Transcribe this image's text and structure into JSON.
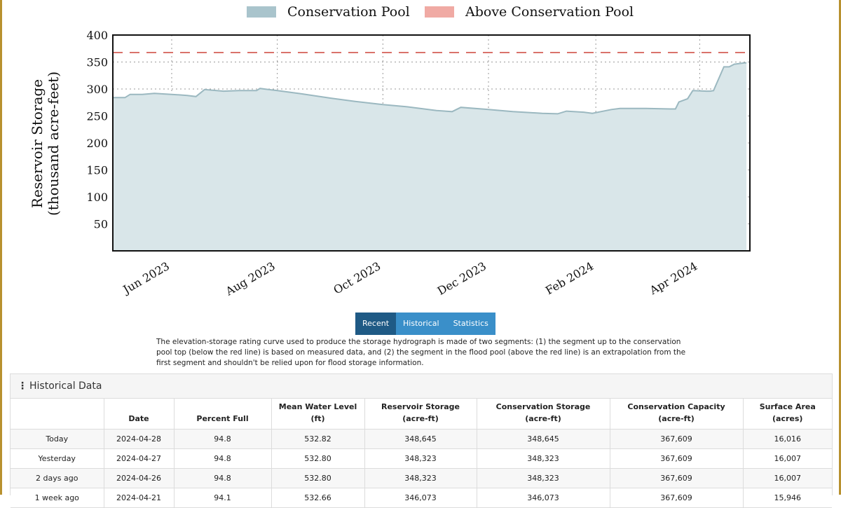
{
  "legend": {
    "conservation_label": "Conservation Pool",
    "above_label": "Above Conservation Pool",
    "conservation_color": "#a9c4cc",
    "above_color": "#f0aaa4"
  },
  "chart_data": {
    "type": "area",
    "ylabel_line1": "Reservoir Storage",
    "ylabel_line2": "(thousand acre-feet)",
    "ylim": [
      0,
      400
    ],
    "yticks": [
      50,
      100,
      150,
      200,
      250,
      300,
      350,
      400
    ],
    "xlim": [
      "2023-04-28",
      "2024-04-30"
    ],
    "xticks": [
      {
        "date": "2023-06-01",
        "label": "Jun 2023"
      },
      {
        "date": "2023-08-01",
        "label": "Aug 2023"
      },
      {
        "date": "2023-10-01",
        "label": "Oct 2023"
      },
      {
        "date": "2023-12-01",
        "label": "Dec 2023"
      },
      {
        "date": "2024-02-01",
        "label": "Feb 2024"
      },
      {
        "date": "2024-04-01",
        "label": "Apr 2024"
      }
    ],
    "grid": true,
    "conservation_pool_top": 367.6,
    "series": [
      {
        "name": "Conservation Pool",
        "x": [
          "2023-04-28",
          "2023-05-05",
          "2023-05-08",
          "2023-05-15",
          "2023-05-22",
          "2023-06-01",
          "2023-06-10",
          "2023-06-15",
          "2023-06-20",
          "2023-07-01",
          "2023-07-10",
          "2023-07-20",
          "2023-07-22",
          "2023-08-01",
          "2023-08-15",
          "2023-09-01",
          "2023-09-15",
          "2023-10-01",
          "2023-10-15",
          "2023-11-01",
          "2023-11-10",
          "2023-11-15",
          "2023-12-01",
          "2023-12-15",
          "2024-01-01",
          "2024-01-10",
          "2024-01-15",
          "2024-01-25",
          "2024-01-30",
          "2024-02-10",
          "2024-02-15",
          "2024-03-01",
          "2024-03-15",
          "2024-03-18",
          "2024-03-20",
          "2024-03-25",
          "2024-03-28",
          "2024-04-05",
          "2024-04-07",
          "2024-04-09",
          "2024-04-15",
          "2024-04-18",
          "2024-04-21",
          "2024-04-26",
          "2024-04-28"
        ],
        "values": [
          284,
          284,
          290,
          290,
          292,
          290,
          288,
          286,
          299,
          296,
          297,
          297,
          301,
          297,
          291,
          283,
          277,
          271,
          267,
          260,
          258,
          266,
          262,
          258,
          255,
          254,
          259,
          257,
          255,
          262,
          264,
          264,
          263,
          263,
          276,
          282,
          297,
          296,
          296,
          297,
          341,
          341,
          346,
          348,
          348.6
        ]
      }
    ]
  },
  "buttons": {
    "recent": "Recent",
    "historical": "Historical",
    "statistics": "Statistics"
  },
  "note": "The elevation-storage rating curve used to produce the storage hydrograph is made of two segments: (1) the segment up to the conservation pool top (below the red line) is based on measured data, and (2) the segment in the flood pool (above the red line) is an extrapolation from the first segment and shouldn't be relied upon for flood storage information.",
  "historical": {
    "title": "Historical Data",
    "headers": [
      {
        "l1": "",
        "l2": ""
      },
      {
        "l1": "",
        "l2": "Date"
      },
      {
        "l1": "",
        "l2": "Percent Full"
      },
      {
        "l1": "Mean Water Level",
        "l2": "(ft)"
      },
      {
        "l1": "Reservoir Storage",
        "l2": "(acre-ft)"
      },
      {
        "l1": "Conservation Storage",
        "l2": "(acre-ft)"
      },
      {
        "l1": "Conservation Capacity",
        "l2": "(acre-ft)"
      },
      {
        "l1": "Surface Area",
        "l2": "(acres)"
      }
    ],
    "rows": [
      [
        "Today",
        "2024-04-28",
        "94.8",
        "532.82",
        "348,645",
        "348,645",
        "367,609",
        "16,016"
      ],
      [
        "Yesterday",
        "2024-04-27",
        "94.8",
        "532.80",
        "348,323",
        "348,323",
        "367,609",
        "16,007"
      ],
      [
        "2 days ago",
        "2024-04-26",
        "94.8",
        "532.80",
        "348,323",
        "348,323",
        "367,609",
        "16,007"
      ],
      [
        "1 week ago",
        "2024-04-21",
        "94.1",
        "532.66",
        "346,073",
        "346,073",
        "367,609",
        "15,946"
      ]
    ]
  }
}
